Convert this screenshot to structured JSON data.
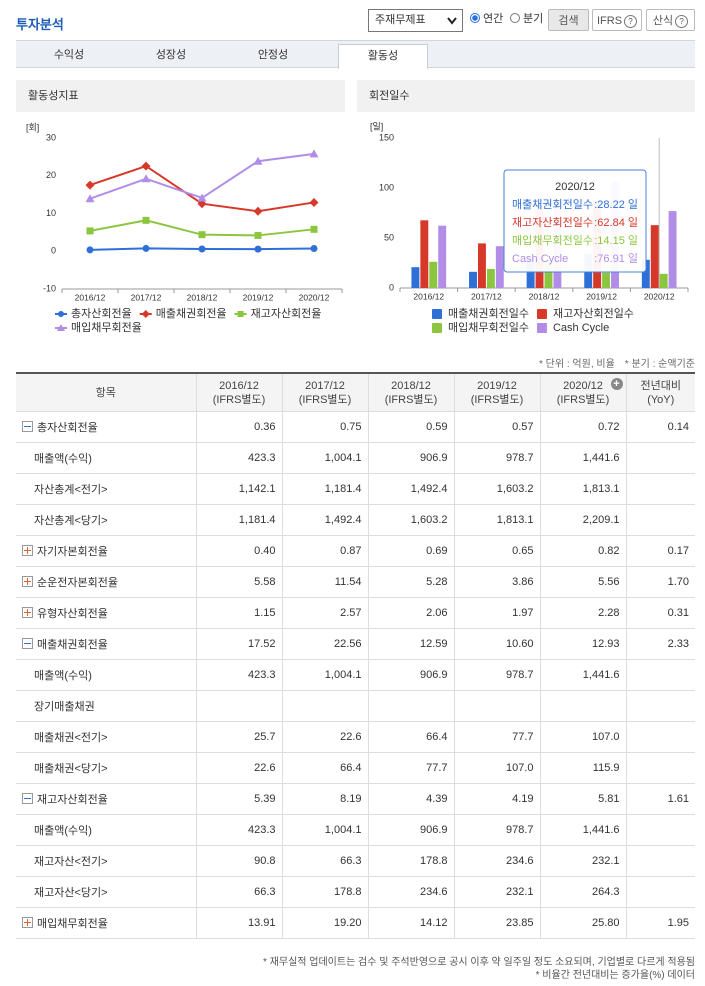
{
  "header": {
    "title": "투자분석",
    "select": "주재무제표",
    "period": {
      "options": [
        "연간",
        "분기"
      ],
      "selected": 0
    },
    "buttons": [
      "검색",
      "IFRS",
      "산식"
    ]
  },
  "tabs": {
    "items": [
      "수익성",
      "성장성",
      "안정성",
      "활동성"
    ],
    "active": 3
  },
  "chart_data": [
    {
      "type": "line",
      "title": "활동성지표",
      "y_label": "[회]",
      "categories": [
        "2016/12",
        "2017/12",
        "2018/12",
        "2019/12",
        "2020/12"
      ],
      "ylim": [
        -10,
        30
      ],
      "yticks": [
        -10,
        0,
        10,
        20,
        30
      ],
      "grid": false,
      "series": [
        {
          "name": "총자산회전율",
          "color": "#2f6fd8",
          "marker": "circle",
          "values": [
            0.36,
            0.75,
            0.59,
            0.57,
            0.72
          ]
        },
        {
          "name": "매출채권회전율",
          "color": "#d6382a",
          "marker": "diamond",
          "values": [
            17.52,
            22.56,
            12.59,
            10.6,
            12.93
          ]
        },
        {
          "name": "재고자산회전율",
          "color": "#8cc63f",
          "marker": "square",
          "values": [
            5.39,
            8.19,
            4.39,
            4.19,
            5.81
          ]
        },
        {
          "name": "매입채무회전율",
          "color": "#b28de8",
          "marker": "triangle",
          "values": [
            13.91,
            19.2,
            14.12,
            23.85,
            25.8
          ]
        }
      ]
    },
    {
      "type": "bar",
      "title": "회전일수",
      "y_label": "[일]",
      "categories": [
        "2016/12",
        "2017/12",
        "2018/12",
        "2019/12",
        "2020/12"
      ],
      "ylim": [
        0,
        150
      ],
      "yticks": [
        0,
        50,
        100,
        150
      ],
      "grid": false,
      "series": [
        {
          "name": "매출채권회전일수",
          "color": "#2f6fd8",
          "values": [
            20.8,
            16.2,
            29.0,
            34.4,
            28.22
          ]
        },
        {
          "name": "재고자산회전일수",
          "color": "#d6382a",
          "values": [
            67.7,
            44.6,
            83.1,
            87.1,
            62.84
          ]
        },
        {
          "name": "매입채무회전일수",
          "color": "#8cc63f",
          "values": [
            26.2,
            19.0,
            25.8,
            15.3,
            14.15
          ]
        },
        {
          "name": "Cash Cycle",
          "color": "#b28de8",
          "values": [
            62.3,
            41.8,
            86.3,
            106.2,
            76.91
          ]
        }
      ],
      "tooltip": {
        "title": "2020/12",
        "rows": [
          {
            "label": "매출채권회전일수",
            "value": ":28.22 일"
          },
          {
            "label": "재고자산회전일수",
            "value": ":62.84 일"
          },
          {
            "label": "매입채무회전일수",
            "value": ":14.15 일"
          },
          {
            "label": "Cash Cycle",
            "value": ":76.91 일"
          }
        ]
      }
    }
  ],
  "table": {
    "notes": [
      "* 단위 : 억원, 비율",
      "* 분기 : 순액기준"
    ],
    "columns": [
      [
        "항목"
      ],
      [
        "2016/12",
        "(IFRS별도)"
      ],
      [
        "2017/12",
        "(IFRS별도)"
      ],
      [
        "2018/12",
        "(IFRS별도)"
      ],
      [
        "2019/12",
        "(IFRS별도)"
      ],
      [
        "2020/12",
        "(IFRS별도)"
      ],
      [
        "전년대비",
        "(YoY)"
      ]
    ],
    "rows": [
      {
        "label": "총자산회전율",
        "icon": "minus",
        "values": [
          "0.36",
          "0.75",
          "0.59",
          "0.57",
          "0.72",
          "0.14"
        ]
      },
      {
        "label": "매출액(수익)",
        "icon": null,
        "values": [
          "423.3",
          "1,004.1",
          "906.9",
          "978.7",
          "1,441.6",
          null
        ]
      },
      {
        "label": "자산총계<전기>",
        "icon": null,
        "values": [
          "1,142.1",
          "1,181.4",
          "1,492.4",
          "1,603.2",
          "1,813.1",
          null
        ]
      },
      {
        "label": "자산총계<당기>",
        "icon": null,
        "values": [
          "1,181.4",
          "1,492.4",
          "1,603.2",
          "1,813.1",
          "2,209.1",
          null
        ]
      },
      {
        "label": "자기자본회전율",
        "icon": "plus",
        "values": [
          "0.40",
          "0.87",
          "0.69",
          "0.65",
          "0.82",
          "0.17"
        ]
      },
      {
        "label": "순운전자본회전율",
        "icon": "plus",
        "values": [
          "5.58",
          "11.54",
          "5.28",
          "3.86",
          "5.56",
          "1.70"
        ]
      },
      {
        "label": "유형자산회전율",
        "icon": "plus",
        "values": [
          "1.15",
          "2.57",
          "2.06",
          "1.97",
          "2.28",
          "0.31"
        ]
      },
      {
        "label": "매출채권회전율",
        "icon": "minus",
        "values": [
          "17.52",
          "22.56",
          "12.59",
          "10.60",
          "12.93",
          "2.33"
        ]
      },
      {
        "label": "매출액(수익)",
        "icon": null,
        "values": [
          "423.3",
          "1,004.1",
          "906.9",
          "978.7",
          "1,441.6",
          null
        ]
      },
      {
        "label": "장기매출채권",
        "icon": null,
        "values": [
          null,
          null,
          null,
          null,
          null,
          null
        ]
      },
      {
        "label": "매출채권<전기>",
        "icon": null,
        "values": [
          "25.7",
          "22.6",
          "66.4",
          "77.7",
          "107.0",
          null
        ]
      },
      {
        "label": "매출채권<당기>",
        "icon": null,
        "values": [
          "22.6",
          "66.4",
          "77.7",
          "107.0",
          "115.9",
          null
        ]
      },
      {
        "label": "재고자산회전율",
        "icon": "minus",
        "values": [
          "5.39",
          "8.19",
          "4.39",
          "4.19",
          "5.81",
          "1.61"
        ]
      },
      {
        "label": "매출액(수익)",
        "icon": null,
        "values": [
          "423.3",
          "1,004.1",
          "906.9",
          "978.7",
          "1,441.6",
          null
        ]
      },
      {
        "label": "재고자산<전기>",
        "icon": null,
        "values": [
          "90.8",
          "66.3",
          "178.8",
          "234.6",
          "232.1",
          null
        ]
      },
      {
        "label": "재고자산<당기>",
        "icon": null,
        "values": [
          "66.3",
          "178.8",
          "234.6",
          "232.1",
          "264.3",
          null
        ]
      },
      {
        "label": "매입채무회전율",
        "icon": "plus",
        "values": [
          "13.91",
          "19.20",
          "14.12",
          "23.85",
          "25.80",
          "1.95"
        ]
      }
    ]
  },
  "footer": [
    "* 재무실적 업데이트는 검수 및 주석반영으로 공시 이후 약 일주일 정도 소요되며, 기업별로 다르게 적용됨",
    "* 비율간 전년대비는 증가율(%) 데이터"
  ]
}
